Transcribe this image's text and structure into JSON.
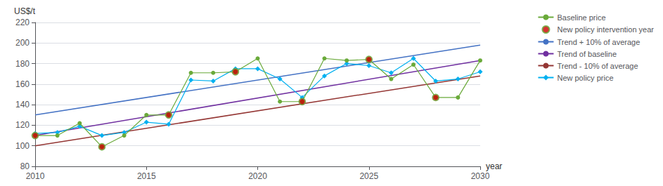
{
  "chart_data": {
    "type": "line",
    "ylabel": "US$/t",
    "xlabel": "year",
    "xlim": [
      2010,
      2030
    ],
    "ylim": [
      80,
      220
    ],
    "xticks": [
      2010,
      2015,
      2020,
      2025,
      2030
    ],
    "yticks": [
      80,
      100,
      120,
      140,
      160,
      180,
      200,
      220
    ],
    "grid": "y",
    "legend": "right",
    "series": [
      {
        "name": "Baseline price",
        "type": "line",
        "marker": "circle",
        "color": "#6aaa3a",
        "x": [
          2010,
          2011,
          2012,
          2013,
          2014,
          2015,
          2016,
          2017,
          2018,
          2019,
          2020,
          2021,
          2022,
          2023,
          2024,
          2025,
          2026,
          2027,
          2028,
          2029,
          2030
        ],
        "values": [
          110,
          110,
          122,
          99,
          110,
          130,
          130,
          171,
          171,
          172,
          185,
          143,
          143,
          185,
          183,
          184,
          165,
          179,
          147,
          147,
          183
        ]
      },
      {
        "name": "New policy intervention year",
        "type": "scatter",
        "marker": "circle",
        "color": "#cc0000",
        "x": [
          2010,
          2013,
          2016,
          2019,
          2022,
          2025,
          2028
        ],
        "values": [
          110,
          99,
          130,
          172,
          143,
          184,
          147
        ]
      },
      {
        "name": "Trend + 10% of average",
        "type": "line",
        "marker": "none",
        "color": "#4472c4",
        "x": [
          2010,
          2030
        ],
        "values": [
          130,
          198
        ]
      },
      {
        "name": "Trend of baseline",
        "type": "line",
        "marker": "none",
        "color": "#7030a0",
        "x": [
          2010,
          2030
        ],
        "values": [
          110,
          183
        ]
      },
      {
        "name": "Trend - 10% of average",
        "type": "line",
        "marker": "none",
        "color": "#943634",
        "x": [
          2010,
          2030
        ],
        "values": [
          100,
          168
        ]
      },
      {
        "name": "New policy price",
        "type": "line",
        "marker": "diamond",
        "color": "#00b0f0",
        "x": [
          2010,
          2011,
          2012,
          2013,
          2014,
          2015,
          2016,
          2017,
          2018,
          2019,
          2020,
          2021,
          2022,
          2023,
          2024,
          2025,
          2026,
          2027,
          2028,
          2029,
          2030
        ],
        "values": [
          112,
          113,
          119,
          110,
          113,
          123,
          121,
          164,
          163,
          175,
          175,
          165,
          147,
          168,
          180,
          178,
          171,
          185,
          163,
          165,
          172
        ]
      }
    ]
  }
}
